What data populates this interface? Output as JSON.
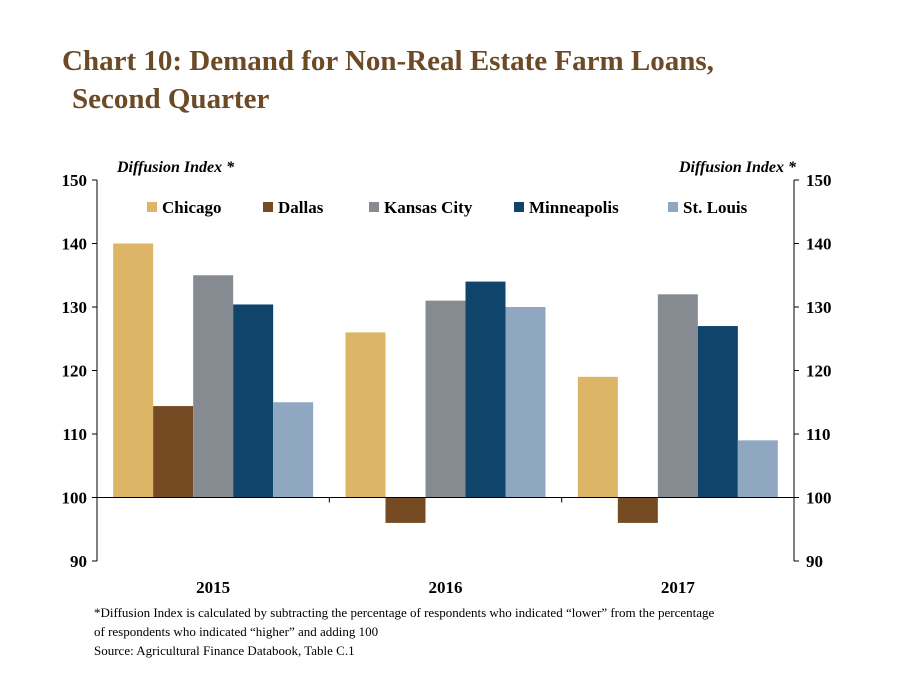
{
  "title_line1": "Chart 10: Demand for Non-Real Estate Farm Loans,",
  "title_line2": "Second Quarter",
  "footnote_1": "*Diffusion Index is calculated by subtracting the percentage of respondents who indicated “lower” from the percentage",
  "footnote_2": "of respondents who indicated “higher” and adding 100",
  "source": "Source: Agricultural Finance Databook, Table C.1",
  "chart_data": {
    "type": "bar",
    "categories": [
      "2015",
      "2016",
      "2017"
    ],
    "baseline": 100,
    "ylim": [
      90,
      150
    ],
    "yticks": [
      90,
      100,
      110,
      120,
      130,
      140,
      150
    ],
    "ylabel_left": "Diffusion Index *",
    "ylabel_right": "Diffusion Index *",
    "legend_position": "top",
    "series": [
      {
        "name": "Chicago",
        "color": "#dcb566",
        "values": [
          140,
          126,
          119
        ]
      },
      {
        "name": "Dallas",
        "color": "#754b24",
        "values": [
          114.4,
          96,
          96
        ]
      },
      {
        "name": "Kansas City",
        "color": "#868b91",
        "values": [
          135,
          131,
          132
        ]
      },
      {
        "name": "Minneapolis",
        "color": "#10456b",
        "values": [
          130.4,
          134,
          127
        ]
      },
      {
        "name": "St. Louis",
        "color": "#8fa7c1",
        "values": [
          115,
          130,
          109
        ]
      }
    ]
  }
}
